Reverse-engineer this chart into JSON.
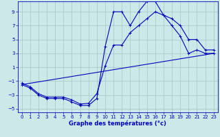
{
  "xlabel": "Graphe des températures (°c)",
  "background_color": "#cce8e8",
  "grid_color": "#aacccc",
  "line_color": "#0000bb",
  "xlim": [
    -0.5,
    23.5
  ],
  "ylim": [
    -5.5,
    10.5
  ],
  "xticks": [
    0,
    1,
    2,
    3,
    4,
    5,
    6,
    7,
    8,
    9,
    10,
    11,
    12,
    13,
    14,
    15,
    16,
    17,
    18,
    19,
    20,
    21,
    22,
    23
  ],
  "yticks": [
    -5,
    -3,
    -1,
    1,
    3,
    5,
    7,
    9
  ],
  "line1_x": [
    0,
    1,
    2,
    3,
    4,
    5,
    6,
    7,
    8,
    9,
    10,
    11,
    12,
    13,
    14,
    15,
    16,
    17,
    18,
    19,
    20,
    21,
    22,
    23
  ],
  "line1_y": [
    -1.5,
    -2.0,
    -3.0,
    -3.5,
    -3.5,
    -3.5,
    -4.0,
    -4.5,
    -4.5,
    -3.5,
    4.0,
    9.0,
    9.0,
    7.0,
    9.0,
    10.5,
    10.5,
    8.5,
    7.0,
    5.5,
    3.0,
    3.5,
    3.0,
    3.0
  ],
  "line2_x": [
    0,
    1,
    2,
    3,
    4,
    5,
    6,
    7,
    8,
    9,
    10,
    11,
    12,
    13,
    14,
    15,
    16,
    17,
    18,
    19,
    20,
    21,
    22,
    23
  ],
  "line2_y": [
    -1.3,
    -1.8,
    -2.8,
    -3.3,
    -3.3,
    -3.3,
    -3.7,
    -4.3,
    -4.2,
    -2.8,
    1.2,
    4.2,
    4.2,
    6.0,
    7.0,
    8.0,
    9.0,
    8.5,
    8.0,
    7.0,
    5.0,
    5.0,
    3.5,
    3.5
  ],
  "line3_x": [
    0,
    23
  ],
  "line3_y": [
    -1.5,
    3.0
  ]
}
